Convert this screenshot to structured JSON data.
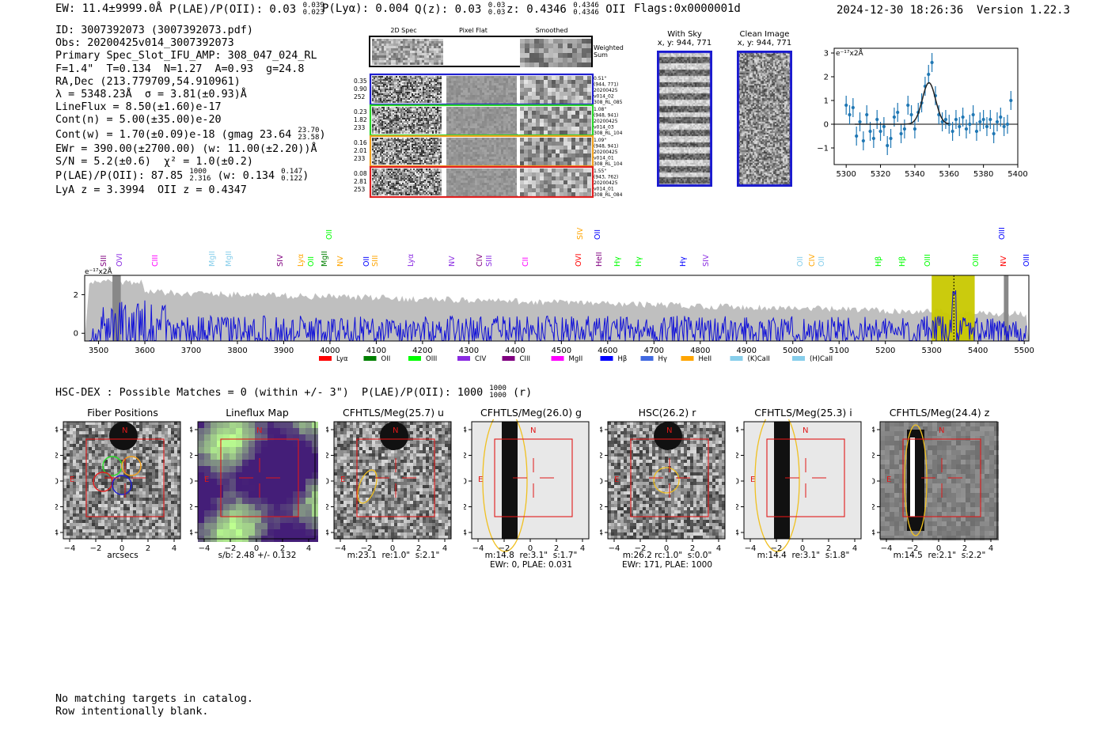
{
  "header": {
    "ew_line": "EW: 11.4±9999.0Å",
    "plae_line": "P(LAE)/P(OII): 0.03",
    "plae_hi": "0.039",
    "plae_lo": "0.023",
    "plya": "P(Lyα): 0.004",
    "qz": "Q(z): 0.03",
    "qz_hi": "0.03",
    "qz_lo": "0.03",
    "z": "z: 0.4346",
    "z_hi": "0.4346",
    "z_lo": "0.4346",
    "z_line": "OII",
    "flags": "Flags:0x0000001d",
    "datetime": "2024-12-30 18:26:36",
    "version": "Version 1.22.3"
  },
  "info": {
    "id": "ID: 3007392073 (3007392073.pdf)",
    "obs": "Obs: 20200425v014_3007392073",
    "primary": "Primary Spec_Slot_IFU_AMP: 308_047_024_RL",
    "fline": "F=1.4\"  T=0.134  N=1.27  A=0.93  g=24.8",
    "radec": "RA,Dec (213.779709,54.910961)",
    "lambda": "λ = 5348.23Å  σ = 3.81(±0.93)Å",
    "lineflux": "LineFlux = 8.50(±1.60)e-17",
    "contn": "Cont(n) = 5.00(±35.00)e-20",
    "contw": "Cont(w) = 1.70(±0.09)e-18 (gmag 23.64",
    "contw_hi": "23.70",
    "contw_lo": "23.58",
    "contw_end": ")",
    "ewr": "EWr = 390.00(±2700.00) (w: 11.00(±2.20))Å",
    "sn": "S/N = 5.2(±0.6)  χ² = 1.0(±0.2)",
    "plae": "P(LAE)/P(OII): 87.85",
    "plae_hi": "1000",
    "plae_lo": "2.316",
    "plae_w": "(w: 0.134",
    "plae_w_hi": "0.147",
    "plae_w_lo": "0.122",
    "plae_w_end": ")",
    "lya": "LyA z = 3.3994  OII z = 0.4347"
  },
  "spec2d": {
    "col_headers": [
      "2D Spec",
      "Pixel Flat",
      "Smoothed"
    ],
    "weighted": "Weighted Sum",
    "rows": [
      {
        "left": [
          "0.35",
          "0.90",
          "252"
        ],
        "right": [
          "0.51\"",
          "(944, 771)",
          "20200425",
          "v014_02",
          "308_RL_085"
        ],
        "color": "#1f1fd0"
      },
      {
        "left": [
          "0.23",
          "1.82",
          "233"
        ],
        "right": [
          "1.08\"",
          "(948, 941)",
          "20200425",
          "v014_03",
          "308_RL_104"
        ],
        "color": "#2ad62a"
      },
      {
        "left": [
          "0.16",
          "2.01",
          "233"
        ],
        "right": [
          "1.09\"",
          "(948, 941)",
          "20200425",
          "v014_01",
          "308_RL_104"
        ],
        "color": "#f0a020"
      },
      {
        "left": [
          "0.08",
          "2.81",
          "253"
        ],
        "right": [
          "1.55\"",
          "(943, 762)",
          "20200425",
          "v014_01",
          "308_RL_084"
        ],
        "color": "#e02020"
      }
    ]
  },
  "with_sky": {
    "title": "With Sky",
    "coords": "x, y: 944, 771"
  },
  "clean": {
    "title": "Clean Image",
    "coords": "x, y: 944, 771"
  },
  "line_fit": {
    "unit": "e⁻¹⁷x2Å",
    "xticks": [
      "5300",
      "5320",
      "5340",
      "5360",
      "5380",
      "5400"
    ],
    "yticks": [
      "3",
      "2",
      "1",
      "0",
      "−1"
    ]
  },
  "full_spec": {
    "unit": "e⁻¹⁷x2Å",
    "xticks": [
      "3500",
      "3600",
      "3700",
      "3800",
      "3900",
      "4000",
      "4100",
      "4200",
      "4300",
      "4400",
      "4500",
      "4600",
      "4700",
      "4800",
      "4900",
      "5000",
      "5100",
      "5200",
      "5300",
      "5400",
      "5500"
    ],
    "yticks": [
      "2",
      "0"
    ],
    "legend": [
      {
        "label": "Lyα",
        "color": "#ff0000"
      },
      {
        "label": "OII",
        "color": "#008000"
      },
      {
        "label": "OIII",
        "color": "#00ff00"
      },
      {
        "label": "CIV",
        "color": "#8a2be2"
      },
      {
        "label": "CIII",
        "color": "#800080"
      },
      {
        "label": "MgII",
        "color": "#ff00ff"
      },
      {
        "label": "Hβ",
        "color": "#0000ff"
      },
      {
        "label": "Hγ",
        "color": "#4169e1"
      },
      {
        "label": "HeII",
        "color": "#ffa500"
      },
      {
        "label": "(K)CaII",
        "color": "#87ceeb"
      },
      {
        "label": "(H)CaII",
        "color": "#87ceeb"
      }
    ],
    "line_labels": [
      {
        "t": "SIII",
        "c": "#800080",
        "x": 131
      },
      {
        "t": "OVI",
        "c": "#8a2be2",
        "x": 151
      },
      {
        "t": "CIII",
        "c": "#ff00ff",
        "x": 196
      },
      {
        "t": "MgII",
        "c": "#87ceeb",
        "x": 268
      },
      {
        "t": "MgII",
        "c": "#87ceeb",
        "x": 289
      },
      {
        "t": "SIV",
        "c": "#800080",
        "x": 354
      },
      {
        "t": "Lyα",
        "c": "#ffa500",
        "x": 380
      },
      {
        "t": "OII",
        "c": "#00ff00",
        "x": 393
      },
      {
        "t": "MgII",
        "c": "#008000",
        "x": 410
      },
      {
        "t": "NV",
        "c": "#ffa500",
        "x": 430
      },
      {
        "t": "OII",
        "c": "#0000ff",
        "x": 463
      },
      {
        "t": "SIII",
        "c": "#ffa500",
        "x": 474
      },
      {
        "t": "Lyα",
        "c": "#8a2be2",
        "x": 519
      },
      {
        "t": "NV",
        "c": "#8a2be2",
        "x": 571
      },
      {
        "t": "CIV",
        "c": "#800080",
        "x": 606
      },
      {
        "t": "SIII",
        "c": "#8a2be2",
        "x": 618
      },
      {
        "t": "CII",
        "c": "#ff00ff",
        "x": 664
      },
      {
        "t": "OVI",
        "c": "#ff0000",
        "x": 731
      },
      {
        "t": "HeII",
        "c": "#800080",
        "x": 757
      },
      {
        "t": "Hγ",
        "c": "#00ff00",
        "x": 780
      },
      {
        "t": "Hγ",
        "c": "#00ff00",
        "x": 807
      },
      {
        "t": "Hγ",
        "c": "#0000ff",
        "x": 863
      },
      {
        "t": "SIV",
        "c": "#8a2be2",
        "x": 892
      },
      {
        "t": "OII",
        "c": "#87ceeb",
        "x": 1011
      },
      {
        "t": "CIV",
        "c": "#ffa500",
        "x": 1026
      },
      {
        "t": "OII",
        "c": "#87ceeb",
        "x": 1038
      },
      {
        "t": "Hβ",
        "c": "#00ff00",
        "x": 1110
      },
      {
        "t": "Hβ",
        "c": "#00ff00",
        "x": 1140
      },
      {
        "t": "OIII",
        "c": "#00ff00",
        "x": 1172
      },
      {
        "t": "OIII",
        "c": "#00ff00",
        "x": 1233
      },
      {
        "t": "NV",
        "c": "#ff0000",
        "x": 1268
      },
      {
        "t": "OIII",
        "c": "#0000ff",
        "x": 1297
      }
    ],
    "upper_labels": [
      {
        "t": "OII",
        "c": "#00ff00",
        "x": 416
      },
      {
        "t": "SIV",
        "c": "#ffa500",
        "x": 733
      },
      {
        "t": "OII",
        "c": "#0000ff",
        "x": 755
      },
      {
        "t": "OIII",
        "c": "#0000ff",
        "x": 1266
      }
    ]
  },
  "hsc": {
    "line": "HSC-DEX : Possible Matches = 0 (within +/- 3\")  P(LAE)/P(OII): 1000",
    "hi": "1000",
    "lo": "1000",
    "end": "(r)"
  },
  "cutouts": [
    {
      "title": "Fiber Positions",
      "cap": "arcsecs",
      "cap2": ""
    },
    {
      "title": "Lineflux Map",
      "cap": "s/b: 2.48 +/- 0.132",
      "cap2": ""
    },
    {
      "title": "CFHTLS/Meg(25.7) u",
      "cap": "m:23.1  re:1.0\"  s:2.1\"",
      "cap2": ""
    },
    {
      "title": "CFHTLS/Meg(26.0) g",
      "cap": "m:14.8  re:3.1\"  s:1.7\"",
      "cap2": "EWr: 0, PLAE: 0.031"
    },
    {
      "title": "HSC(26.2) r",
      "cap": "m:26.2 rc:1.0\"  s:0.0\"",
      "cap2": "EWr: 171, PLAE: 1000"
    },
    {
      "title": "CFHTLS/Meg(25.3) i",
      "cap": "m:14.4  re:3.1\"  s:1.8\"",
      "cap2": ""
    },
    {
      "title": "CFHTLS/Meg(24.4) z",
      "cap": "m:14.5  re:2.1\"  s:2.2\"",
      "cap2": ""
    }
  ],
  "cut_axes": {
    "xticks": [
      "−4",
      "−2",
      "0",
      "2",
      "4"
    ],
    "yticks": [
      "4",
      "2",
      "0",
      "−2",
      "−4"
    ],
    "north": "N",
    "east": "E"
  },
  "footer": {
    "line1": "No matching targets in catalog.",
    "line2": "Row intentionally blank."
  },
  "chart_data": [
    {
      "type": "scatter",
      "title": "",
      "xlabel": "",
      "ylabel": "e⁻¹⁷x2Å",
      "xlim": [
        5293,
        5400
      ],
      "ylim": [
        -1.7,
        3.2
      ],
      "x": [
        5300,
        5302,
        5304,
        5306,
        5308,
        5310,
        5312,
        5314,
        5316,
        5318,
        5320,
        5322,
        5324,
        5326,
        5328,
        5330,
        5332,
        5334,
        5336,
        5338,
        5340,
        5342,
        5344,
        5346,
        5348,
        5350,
        5352,
        5354,
        5356,
        5358,
        5360,
        5362,
        5364,
        5366,
        5368,
        5370,
        5372,
        5374,
        5376,
        5378,
        5380,
        5382,
        5384,
        5386,
        5388,
        5390,
        5392,
        5394,
        5396
      ],
      "y": [
        0.8,
        0.4,
        0.7,
        -0.5,
        0.1,
        -0.7,
        0.4,
        -0.3,
        -0.6,
        0.2,
        -0.3,
        -0.1,
        -0.9,
        -0.6,
        0.3,
        0.5,
        -0.4,
        -0.2,
        0.8,
        0.4,
        -0.2,
        0.5,
        0.9,
        1.6,
        2.1,
        2.6,
        1.2,
        0.4,
        0.1,
        0.2,
        0.0,
        -0.3,
        0.2,
        -0.1,
        0.3,
        -0.2,
        0.0,
        0.4,
        -0.3,
        0.1,
        0.2,
        -0.1,
        0.2,
        -0.4,
        0.1,
        0.3,
        -0.1,
        0.0,
        1.0
      ],
      "fit": {
        "amp": 1.75,
        "center": 5348.23,
        "sigma": 3.81
      }
    },
    {
      "type": "line",
      "title": "",
      "xlabel": "",
      "ylabel": "e⁻¹⁷x2Å",
      "xlim": [
        3470,
        5510
      ],
      "ylim": [
        -0.4,
        3.0
      ],
      "highlight_regions": [
        [
          5300,
          5393
        ]
      ],
      "marker_x": 5348
    }
  ]
}
